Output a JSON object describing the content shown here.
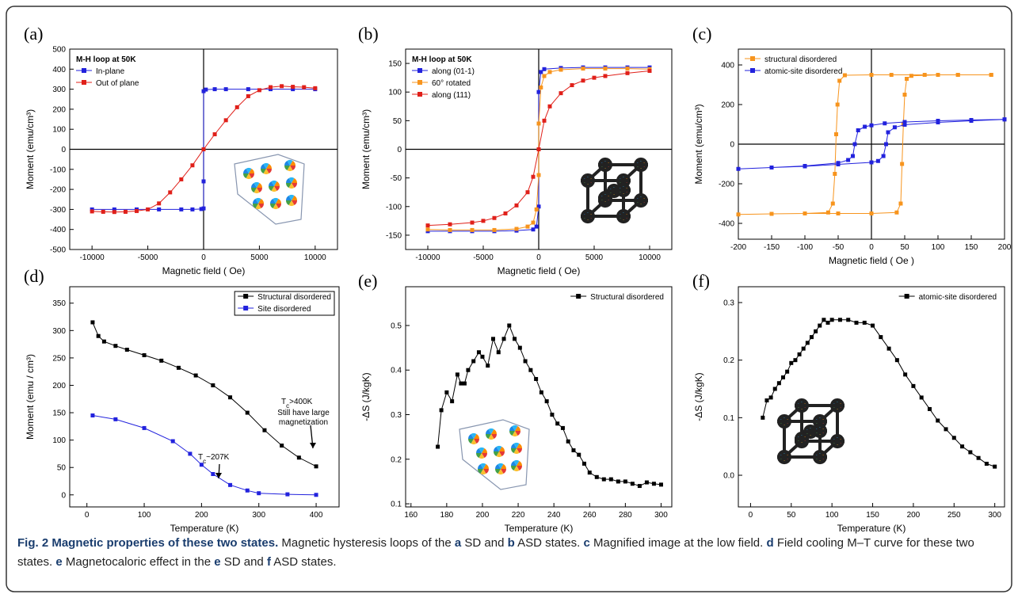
{
  "chart_data": [
    {
      "type": "line",
      "panel_label": "(a)",
      "title": "M-H loop at 50K",
      "xlabel": "Magnetic field ( Oe)",
      "ylabel": "Moment (emu/cm³)",
      "xlim": [
        -12000,
        12000
      ],
      "ylim": [
        -500,
        500
      ],
      "xticks": [
        -10000,
        -5000,
        0,
        5000,
        10000
      ],
      "yticks": [
        -500,
        -400,
        -300,
        -200,
        -100,
        0,
        100,
        200,
        300,
        400,
        500
      ],
      "zero_lines": true,
      "legend": "upper left",
      "series": [
        {
          "name": "In-plane",
          "color": "#2222dd",
          "x": [
            -10000,
            -8000,
            -6000,
            -4000,
            -2000,
            -1000,
            -200,
            0,
            0,
            0,
            200,
            1000,
            2000,
            4000,
            6000,
            8000,
            10000
          ],
          "values": [
            -300,
            -300,
            -300,
            -300,
            -300,
            -300,
            -298,
            -295,
            -160,
            290,
            298,
            300,
            300,
            300,
            300,
            300,
            300
          ]
        },
        {
          "name": "Out of plane",
          "color": "#e0201a",
          "x": [
            -10000,
            -9000,
            -8000,
            -7000,
            -6000,
            -5000,
            -4000,
            -3000,
            -2000,
            -1000,
            0,
            1000,
            2000,
            3000,
            4000,
            5000,
            6000,
            7000,
            8000,
            9000,
            10000
          ],
          "values": [
            -310,
            -312,
            -313,
            -312,
            -308,
            -300,
            -270,
            -215,
            -150,
            -80,
            0,
            75,
            145,
            210,
            265,
            295,
            310,
            315,
            312,
            310,
            305
          ]
        }
      ]
    },
    {
      "type": "line",
      "panel_label": "(b)",
      "title": "M-H loop at 50K",
      "xlabel": "Magnetic field ( Oe)",
      "ylabel": "Moment (emu/cm³)",
      "xlim": [
        -12000,
        12000
      ],
      "ylim": [
        -175,
        175
      ],
      "xticks": [
        -10000,
        -5000,
        0,
        5000,
        10000
      ],
      "yticks": [
        -150,
        -100,
        -50,
        0,
        50,
        100,
        150
      ],
      "zero_lines": true,
      "legend": "upper left",
      "series": [
        {
          "name": "along (01-1)",
          "color": "#2222dd",
          "x": [
            -10000,
            -8000,
            -6000,
            -4000,
            -2000,
            -500,
            -200,
            0,
            0,
            200,
            500,
            2000,
            4000,
            6000,
            8000,
            10000
          ],
          "values": [
            -143,
            -143,
            -143,
            -143,
            -142,
            -140,
            -135,
            -100,
            100,
            135,
            140,
            142,
            143,
            143,
            143,
            143
          ]
        },
        {
          "name": "60° rotated",
          "color": "#f7941d",
          "x": [
            -10000,
            -8000,
            -6000,
            -4000,
            -2000,
            -1000,
            -500,
            -200,
            0,
            0,
            200,
            500,
            1000,
            2000,
            4000,
            6000,
            8000,
            10000
          ],
          "values": [
            -140,
            -141,
            -141,
            -141,
            -139,
            -135,
            -128,
            -105,
            -45,
            45,
            108,
            128,
            135,
            139,
            141,
            141,
            141,
            140
          ]
        },
        {
          "name": "along (111)",
          "color": "#e0201a",
          "x": [
            -10000,
            -8000,
            -6000,
            -5000,
            -4000,
            -3000,
            -2000,
            -1000,
            -500,
            0,
            500,
            1000,
            2000,
            3000,
            4000,
            5000,
            6000,
            8000,
            10000
          ],
          "values": [
            -133,
            -131,
            -128,
            -125,
            -120,
            -112,
            -98,
            -75,
            -48,
            0,
            50,
            75,
            98,
            112,
            120,
            125,
            128,
            133,
            137
          ]
        }
      ]
    },
    {
      "type": "line",
      "panel_label": "(c)",
      "xlabel": "Magnetic field ( Oe )",
      "ylabel": "Moment (emu/cm³)",
      "xlim": [
        -200,
        200
      ],
      "ylim": [
        -480,
        480
      ],
      "xticks": [
        -200,
        -150,
        -100,
        -50,
        0,
        50,
        100,
        150,
        200
      ],
      "yticks": [
        -400,
        -200,
        0,
        200,
        400
      ],
      "zero_lines": true,
      "legend": "upper left",
      "series": [
        {
          "name": "structural disordered",
          "color": "#f7941d",
          "x": [
            180,
            130,
            80,
            30,
            0,
            -40,
            -48,
            -51,
            -53,
            -55,
            -58,
            -65,
            -100,
            -150,
            -200,
            -150,
            -100,
            -50,
            0,
            38,
            44,
            46,
            48,
            50,
            53,
            60,
            100,
            130,
            180
          ],
          "values": [
            350,
            350,
            350,
            350,
            350,
            348,
            320,
            200,
            50,
            -150,
            -300,
            -345,
            -350,
            -352,
            -355,
            -352,
            -350,
            -350,
            -350,
            -345,
            -300,
            -100,
            100,
            250,
            330,
            345,
            350,
            350,
            350
          ]
        },
        {
          "name": "atomic-site disordered",
          "color": "#2222dd",
          "x": [
            200,
            150,
            100,
            50,
            20,
            0,
            -10,
            -20,
            -25,
            -28,
            -35,
            -50,
            -100,
            -150,
            -200,
            -150,
            -100,
            -50,
            0,
            10,
            18,
            22,
            25,
            35,
            50,
            100,
            150,
            200
          ],
          "values": [
            125,
            122,
            118,
            112,
            105,
            95,
            88,
            70,
            0,
            -60,
            -80,
            -95,
            -110,
            -118,
            -125,
            -118,
            -112,
            -102,
            -92,
            -85,
            -60,
            0,
            60,
            85,
            98,
            110,
            118,
            125
          ]
        }
      ]
    },
    {
      "type": "line",
      "panel_label": "(d)",
      "xlabel": "Temperature (K)",
      "ylabel": "Moment (emu / cm³)",
      "xlim": [
        -30,
        440
      ],
      "ylim": [
        -22,
        380
      ],
      "xticks": [
        0,
        100,
        200,
        300,
        400
      ],
      "yticks": [
        0,
        50,
        100,
        150,
        200,
        250,
        300,
        350
      ],
      "zero_lines": false,
      "legend": "upper right",
      "legend_box": true,
      "annotations": [
        {
          "text": "T",
          "sub": "c",
          "tail": ">400K",
          "lines": [
            "Still have large",
            "magnetization"
          ]
        },
        {
          "text": "T",
          "sub": "c",
          "tail": "~207K"
        }
      ],
      "series": [
        {
          "name": "Structural disordered",
          "color": "#000000",
          "x": [
            10,
            20,
            30,
            50,
            70,
            100,
            130,
            160,
            190,
            220,
            250,
            280,
            310,
            340,
            370,
            400
          ],
          "values": [
            315,
            290,
            280,
            272,
            265,
            255,
            245,
            232,
            218,
            200,
            178,
            150,
            118,
            90,
            68,
            52
          ]
        },
        {
          "name": "Site disordered",
          "color": "#2222dd",
          "x": [
            10,
            50,
            100,
            150,
            180,
            200,
            220,
            250,
            280,
            300,
            350,
            400
          ],
          "values": [
            145,
            138,
            122,
            98,
            75,
            55,
            38,
            18,
            8,
            3,
            1,
            0
          ]
        }
      ]
    },
    {
      "type": "line",
      "panel_label": "(e)",
      "xlabel": "Temperature (K)",
      "ylabel": "-ΔS (J/kgK)",
      "xlim": [
        157,
        306
      ],
      "ylim": [
        0.093,
        0.587
      ],
      "xticks": [
        160,
        180,
        200,
        220,
        240,
        260,
        280,
        300
      ],
      "yticks": [
        0.1,
        0.2,
        0.3,
        0.4,
        0.5
      ],
      "zero_lines": false,
      "legend": "upper right",
      "series": [
        {
          "name": "Structural disordered",
          "color": "#000000",
          "x": [
            175,
            177,
            180,
            183,
            186,
            188,
            190,
            192,
            195,
            198,
            200,
            203,
            206,
            209,
            212,
            215,
            218,
            221,
            224,
            227,
            230,
            233,
            236,
            239,
            242,
            245,
            248,
            251,
            254,
            257,
            260,
            264,
            268,
            272,
            276,
            280,
            284,
            288,
            292,
            296,
            300
          ],
          "values": [
            0.228,
            0.31,
            0.35,
            0.33,
            0.39,
            0.37,
            0.37,
            0.4,
            0.42,
            0.44,
            0.43,
            0.41,
            0.47,
            0.44,
            0.47,
            0.5,
            0.47,
            0.45,
            0.42,
            0.4,
            0.38,
            0.35,
            0.33,
            0.3,
            0.28,
            0.27,
            0.24,
            0.22,
            0.21,
            0.19,
            0.17,
            0.16,
            0.155,
            0.155,
            0.15,
            0.15,
            0.145,
            0.14,
            0.148,
            0.145,
            0.143
          ]
        }
      ]
    },
    {
      "type": "line",
      "panel_label": "(f)",
      "xlabel": "Temperature (K)",
      "ylabel": "-ΔS (J/kgK)",
      "xlim": [
        -15,
        312
      ],
      "ylim": [
        -0.055,
        0.3275
      ],
      "xticks": [
        0,
        50,
        100,
        150,
        200,
        250,
        300
      ],
      "yticks": [
        {
          "value": 0,
          "label": "0.0"
        },
        0.1,
        0.2,
        0.3
      ],
      "zero_lines": false,
      "legend": "upper right",
      "series": [
        {
          "name": "atomic-site disordered",
          "color": "#000000",
          "x": [
            15,
            20,
            25,
            30,
            35,
            40,
            45,
            50,
            55,
            60,
            65,
            70,
            75,
            80,
            85,
            90,
            95,
            100,
            110,
            120,
            130,
            140,
            150,
            160,
            170,
            180,
            190,
            200,
            210,
            220,
            230,
            240,
            250,
            260,
            270,
            280,
            290,
            300
          ],
          "values": [
            0.1,
            0.13,
            0.135,
            0.15,
            0.16,
            0.17,
            0.18,
            0.195,
            0.2,
            0.21,
            0.22,
            0.23,
            0.24,
            0.25,
            0.26,
            0.27,
            0.265,
            0.27,
            0.27,
            0.27,
            0.265,
            0.265,
            0.26,
            0.24,
            0.22,
            0.2,
            0.175,
            0.155,
            0.135,
            0.115,
            0.095,
            0.08,
            0.065,
            0.05,
            0.04,
            0.03,
            0.02,
            0.015
          ]
        }
      ]
    }
  ],
  "caption": {
    "title": "Fig. 2 Magnetic properties of these two states.",
    "parts": [
      {
        "text": "Magnetic hysteresis loops of the"
      },
      {
        "text": "a",
        "bold": true
      },
      {
        "text": "SD and"
      },
      {
        "text": "b",
        "bold": true
      },
      {
        "text": "ASD states."
      },
      {
        "text": "c",
        "bold": true
      },
      {
        "text": "Magnified image at the low field."
      },
      {
        "text": "d",
        "bold": true
      },
      {
        "text": "Field cooling M–T curve for these two states."
      },
      {
        "text": "e",
        "bold": true
      },
      {
        "text": "Magnetocaloric effect in the"
      },
      {
        "text": "e",
        "bold": true
      },
      {
        "text": "SD and"
      },
      {
        "text": "f",
        "bold": true
      },
      {
        "text": "ASD states."
      }
    ]
  }
}
